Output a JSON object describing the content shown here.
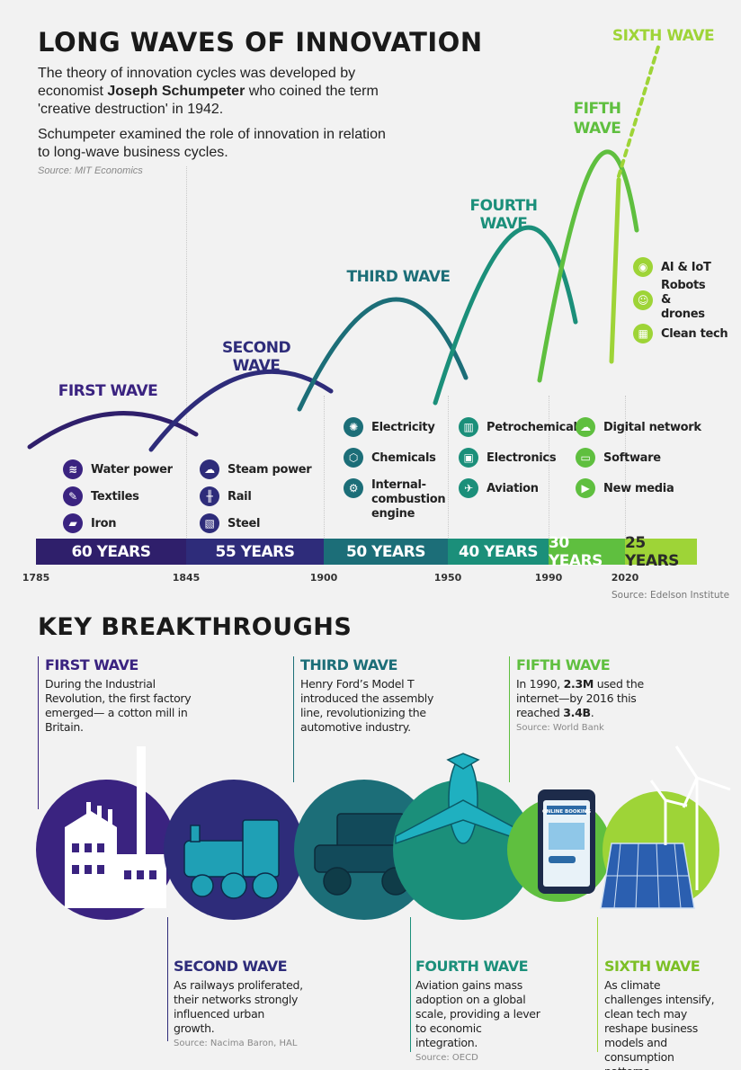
{
  "header": {
    "title": "LONG WAVES OF INNOVATION",
    "intro1_pre": "The theory of innovation cycles was developed by economist ",
    "intro1_bold": "Joseph Schumpeter",
    "intro1_post": " who coined the term 'creative destruction' in 1942.",
    "intro2": "Schumpeter examined the role of innovation in relation to long-wave business cycles.",
    "source": "Source: MIT Economics"
  },
  "colors": {
    "wave1": "#2f1f6b",
    "wave2": "#2e2c7a",
    "wave3": "#1c6e78",
    "wave4": "#1b8f7a",
    "wave5": "#5fbf3f",
    "wave6": "#9ed437"
  },
  "chart_data": {
    "type": "line",
    "x_axis_years": [
      1785,
      1845,
      1900,
      1950,
      1990,
      2020
    ],
    "waves": [
      {
        "name": "FIRST WAVE",
        "duration": "60 YEARS",
        "start": 1785,
        "end": 1845,
        "color": "#2f1f6b",
        "items": [
          {
            "icon": "water-icon",
            "label": "Water power"
          },
          {
            "icon": "textiles-icon",
            "label": "Textiles"
          },
          {
            "icon": "iron-icon",
            "label": "Iron"
          }
        ]
      },
      {
        "name": "SECOND WAVE",
        "duration": "55 YEARS",
        "start": 1845,
        "end": 1900,
        "color": "#2e2c7a",
        "items": [
          {
            "icon": "steam-icon",
            "label": "Steam power"
          },
          {
            "icon": "rail-icon",
            "label": "Rail"
          },
          {
            "icon": "steel-icon",
            "label": "Steel"
          }
        ]
      },
      {
        "name": "THIRD WAVE",
        "duration": "50 YEARS",
        "start": 1900,
        "end": 1950,
        "color": "#1c6e78",
        "items": [
          {
            "icon": "electricity-icon",
            "label": "Electricity"
          },
          {
            "icon": "chemicals-icon",
            "label": "Chemicals"
          },
          {
            "icon": "engine-icon",
            "label": "Internal-combustion engine"
          }
        ]
      },
      {
        "name": "FOURTH WAVE",
        "duration": "40 YEARS",
        "start": 1950,
        "end": 1990,
        "color": "#1b8f7a",
        "items": [
          {
            "icon": "petrochemicals-icon",
            "label": "Petrochemicals"
          },
          {
            "icon": "electronics-icon",
            "label": "Electronics"
          },
          {
            "icon": "aviation-icon",
            "label": "Aviation"
          }
        ]
      },
      {
        "name": "FIFTH WAVE",
        "duration": "30 YEARS",
        "start": 1990,
        "end": 2020,
        "color": "#5fbf3f",
        "items": [
          {
            "icon": "digital-network-icon",
            "label": "Digital network"
          },
          {
            "icon": "software-icon",
            "label": "Software"
          },
          {
            "icon": "new-media-icon",
            "label": "New media"
          }
        ]
      },
      {
        "name": "SIXTH WAVE",
        "duration": "25 YEARS",
        "start": 2020,
        "end": null,
        "color": "#9ed437",
        "items": [
          {
            "icon": "ai-iot-icon",
            "label": "AI & IoT"
          },
          {
            "icon": "robots-icon",
            "label": "Robots & drones"
          },
          {
            "icon": "clean-tech-icon",
            "label": "Clean tech"
          }
        ]
      }
    ],
    "source": "Source: Edelson Institute"
  },
  "breakthroughs": {
    "title": "KEY BREAKTHROUGHS",
    "first": {
      "head": "FIRST WAVE",
      "text": "During the Industrial Revolution, the first factory emerged— a cotton mill in Britain."
    },
    "second": {
      "head": "SECOND WAVE",
      "text": "As railways proliferated, their networks strongly influenced urban growth.",
      "source": "Source: Nacima Baron, HAL"
    },
    "third": {
      "head": "THIRD WAVE",
      "text": "Henry Ford’s Model T introduced the assembly line, revolutionizing the automotive industry."
    },
    "fourth": {
      "head": "FOURTH WAVE",
      "text": "Aviation gains mass adoption on a global scale, providing a lever to economic integration.",
      "source": "Source: OECD"
    },
    "fifth": {
      "head": "FIFTH WAVE",
      "text_pre": "In 1990, ",
      "b1": "2.3M",
      "text_mid": " used the internet—by 2016 this reached ",
      "b2": "3.4B",
      "text_post": ".",
      "source": "Source: World Bank"
    },
    "sixth": {
      "head": "SIXTH WAVE",
      "text": "As climate challenges intensify, clean tech may reshape business models and consumption patterns."
    }
  },
  "illustrations": {
    "online_booking": "ONLINE BOOKING"
  }
}
